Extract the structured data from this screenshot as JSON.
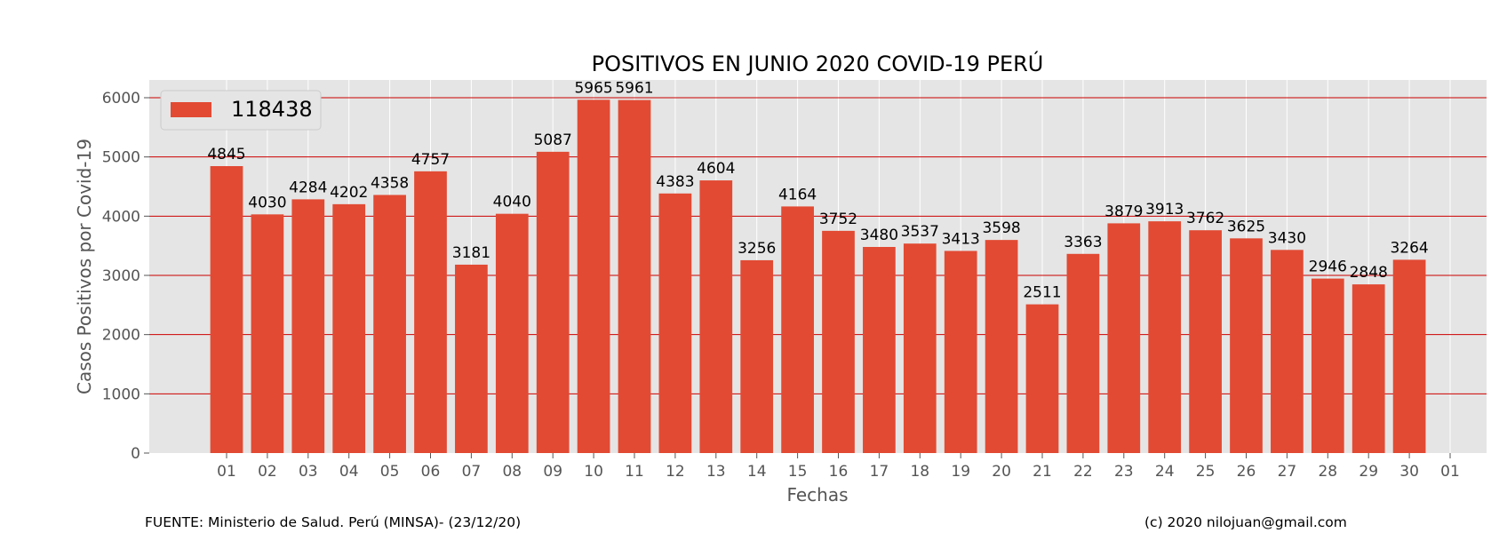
{
  "footer": {
    "source": "FUENTE: Ministerio de Salud. Perú (MINSA)- (23/12/20)",
    "credit": "(c) 2020 nilojuan@gmail.com"
  },
  "chart_data": {
    "type": "bar",
    "title": "POSITIVOS EN JUNIO 2020 COVID-19 PERÚ",
    "xlabel": "Fechas",
    "ylabel": "Casos Positivos por Covid-19",
    "categories": [
      "01",
      "02",
      "03",
      "04",
      "05",
      "06",
      "07",
      "08",
      "09",
      "10",
      "11",
      "12",
      "13",
      "14",
      "15",
      "16",
      "17",
      "18",
      "19",
      "20",
      "21",
      "22",
      "23",
      "24",
      "25",
      "26",
      "27",
      "28",
      "29",
      "30"
    ],
    "extra_tick": "01",
    "values": [
      4845,
      4030,
      4284,
      4202,
      4358,
      4757,
      3181,
      4040,
      5087,
      5965,
      5961,
      4383,
      4604,
      3256,
      4164,
      3752,
      3480,
      3537,
      3413,
      3598,
      2511,
      3363,
      3879,
      3913,
      3762,
      3625,
      3430,
      2946,
      2848,
      3264
    ],
    "series": [
      {
        "name": "118438"
      }
    ],
    "ylim": [
      0,
      6300
    ],
    "yticks": [
      0,
      1000,
      2000,
      3000,
      4000,
      5000,
      6000
    ],
    "grid": true,
    "legend_position": "top-left",
    "colors": {
      "bar": "#e24a33",
      "plot_bg": "#e5e5e5",
      "grid": "#cc0000",
      "vgrid": "#ffffff"
    }
  }
}
